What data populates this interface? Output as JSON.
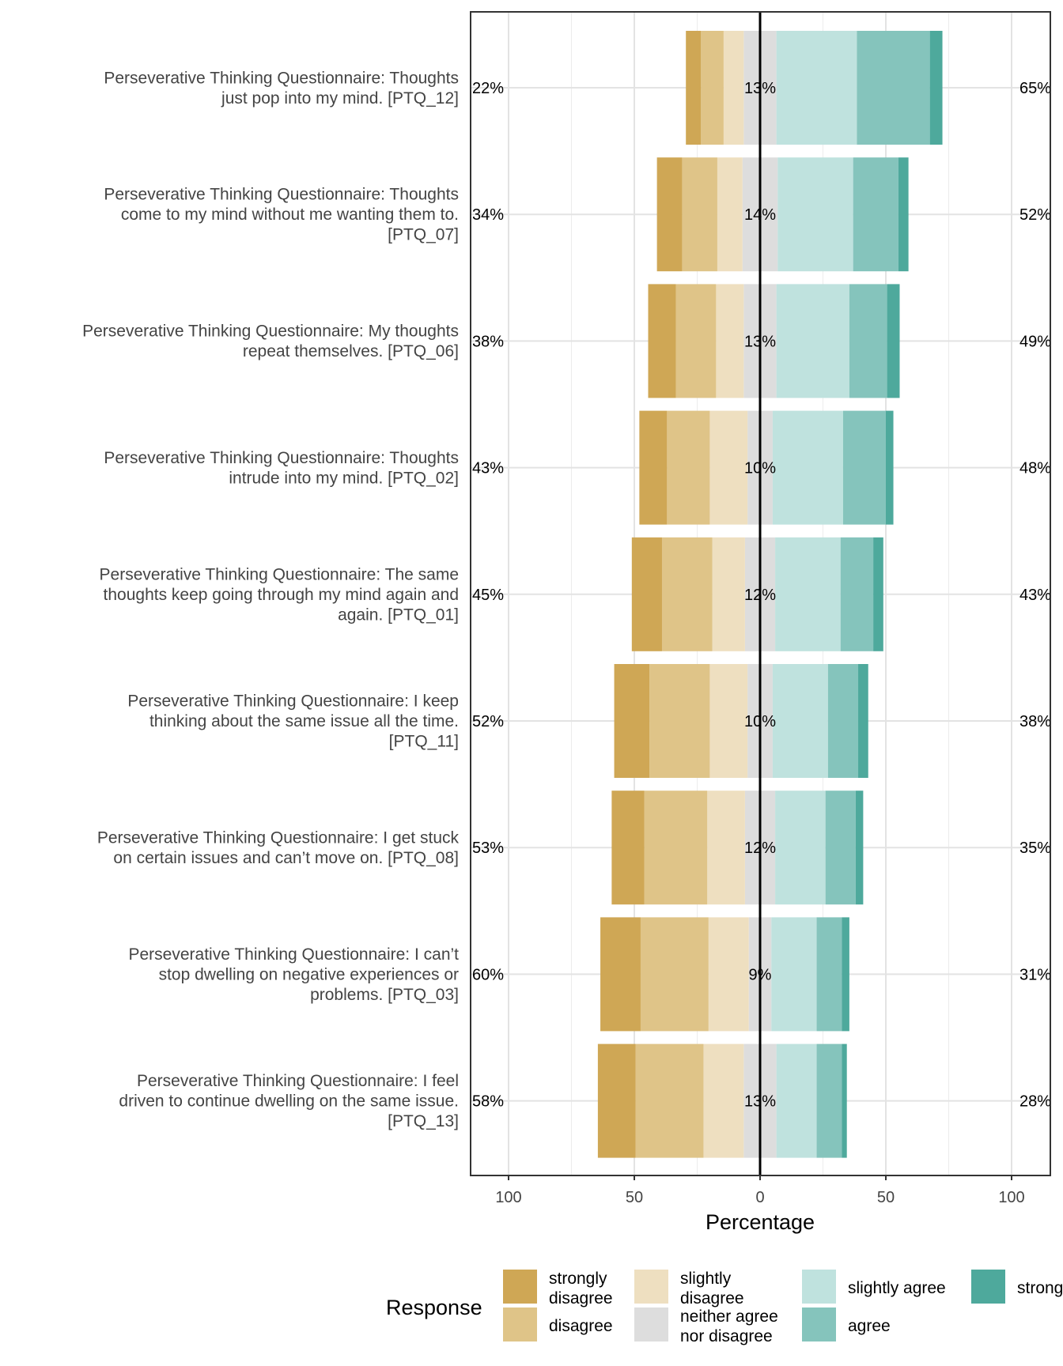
{
  "chart_data": {
    "type": "bar",
    "subtype": "diverging-stacked-likert",
    "title": "",
    "xlabel": "Percentage",
    "ylabel": "",
    "xlim": [
      -100,
      100
    ],
    "x_ticks": [
      -100,
      -50,
      0,
      50,
      100
    ],
    "x_tick_labels": [
      "100",
      "50",
      "0",
      "50",
      "100"
    ],
    "grid": true,
    "legend": {
      "title": "Response",
      "position": "bottom",
      "entries": [
        {
          "label": "strongly disagree",
          "lines": [
            "strongly",
            "disagree"
          ]
        },
        {
          "label": "disagree",
          "lines": [
            "disagree"
          ]
        },
        {
          "label": "slightly disagree",
          "lines": [
            "slightly",
            "disagree"
          ]
        },
        {
          "label": "neither agree nor disagree",
          "lines": [
            "neither agree",
            "nor disagree"
          ]
        },
        {
          "label": "slightly agree",
          "lines": [
            "slightly agree"
          ]
        },
        {
          "label": "agree",
          "lines": [
            "agree"
          ]
        },
        {
          "label": "strongly agree",
          "lines": [
            "strongly agree"
          ]
        }
      ]
    },
    "colors": [
      "#cfa755",
      "#dfc488",
      "#eedfc0",
      "#dddddd",
      "#bfe2de",
      "#85c4bc",
      "#4ea99c"
    ],
    "categories": [
      {
        "lines": [
          "Perseverative Thinking Questionnaire: Thoughts",
          "just pop into my mind. [PTQ_12]"
        ],
        "values": [
          6,
          9,
          8,
          13,
          32,
          29,
          5
        ],
        "left_label": "22%",
        "center_label": "13%",
        "right_label": "65%"
      },
      {
        "lines": [
          "Perseverative Thinking Questionnaire: Thoughts",
          "come to my mind without me wanting them to.",
          "[PTQ_07]"
        ],
        "values": [
          10,
          14,
          10,
          14,
          30,
          18,
          4
        ],
        "left_label": "34%",
        "center_label": "14%",
        "right_label": "52%"
      },
      {
        "lines": [
          "Perseverative Thinking Questionnaire: My thoughts",
          "repeat themselves. [PTQ_06]"
        ],
        "values": [
          11,
          16,
          11,
          13,
          29,
          15,
          5
        ],
        "left_label": "38%",
        "center_label": "13%",
        "right_label": "49%"
      },
      {
        "lines": [
          "Perseverative Thinking Questionnaire: Thoughts",
          "intrude into my mind. [PTQ_02]"
        ],
        "values": [
          11,
          17,
          15,
          10,
          28,
          17,
          3
        ],
        "left_label": "43%",
        "center_label": "10%",
        "right_label": "48%"
      },
      {
        "lines": [
          "Perseverative Thinking Questionnaire: The same",
          "thoughts keep going through my mind again and",
          "again. [PTQ_01]"
        ],
        "values": [
          12,
          20,
          13,
          12,
          26,
          13,
          4
        ],
        "left_label": "45%",
        "center_label": "12%",
        "right_label": "43%"
      },
      {
        "lines": [
          "Perseverative Thinking Questionnaire: I keep",
          "thinking about the same issue all the time.",
          "[PTQ_11]"
        ],
        "values": [
          14,
          24,
          15,
          10,
          22,
          12,
          4
        ],
        "left_label": "52%",
        "center_label": "10%",
        "right_label": "38%"
      },
      {
        "lines": [
          "Perseverative Thinking Questionnaire: I get stuck",
          "on certain issues and can’t move on. [PTQ_08]"
        ],
        "values": [
          13,
          25,
          15,
          12,
          20,
          12,
          3
        ],
        "left_label": "53%",
        "center_label": "12%",
        "right_label": "35%"
      },
      {
        "lines": [
          "Perseverative Thinking Questionnaire: I can’t",
          "stop dwelling on negative experiences or",
          "problems. [PTQ_03]"
        ],
        "values": [
          16,
          27,
          16,
          9,
          18,
          10,
          3
        ],
        "left_label": "60%",
        "center_label": "9%",
        "right_label": "31%"
      },
      {
        "lines": [
          "Perseverative Thinking Questionnaire: I feel",
          "driven to continue dwelling on the same issue.",
          "[PTQ_13]"
        ],
        "values": [
          15,
          27,
          16,
          13,
          16,
          10,
          2
        ],
        "left_label": "58%",
        "center_label": "13%",
        "right_label": "28%"
      }
    ]
  }
}
